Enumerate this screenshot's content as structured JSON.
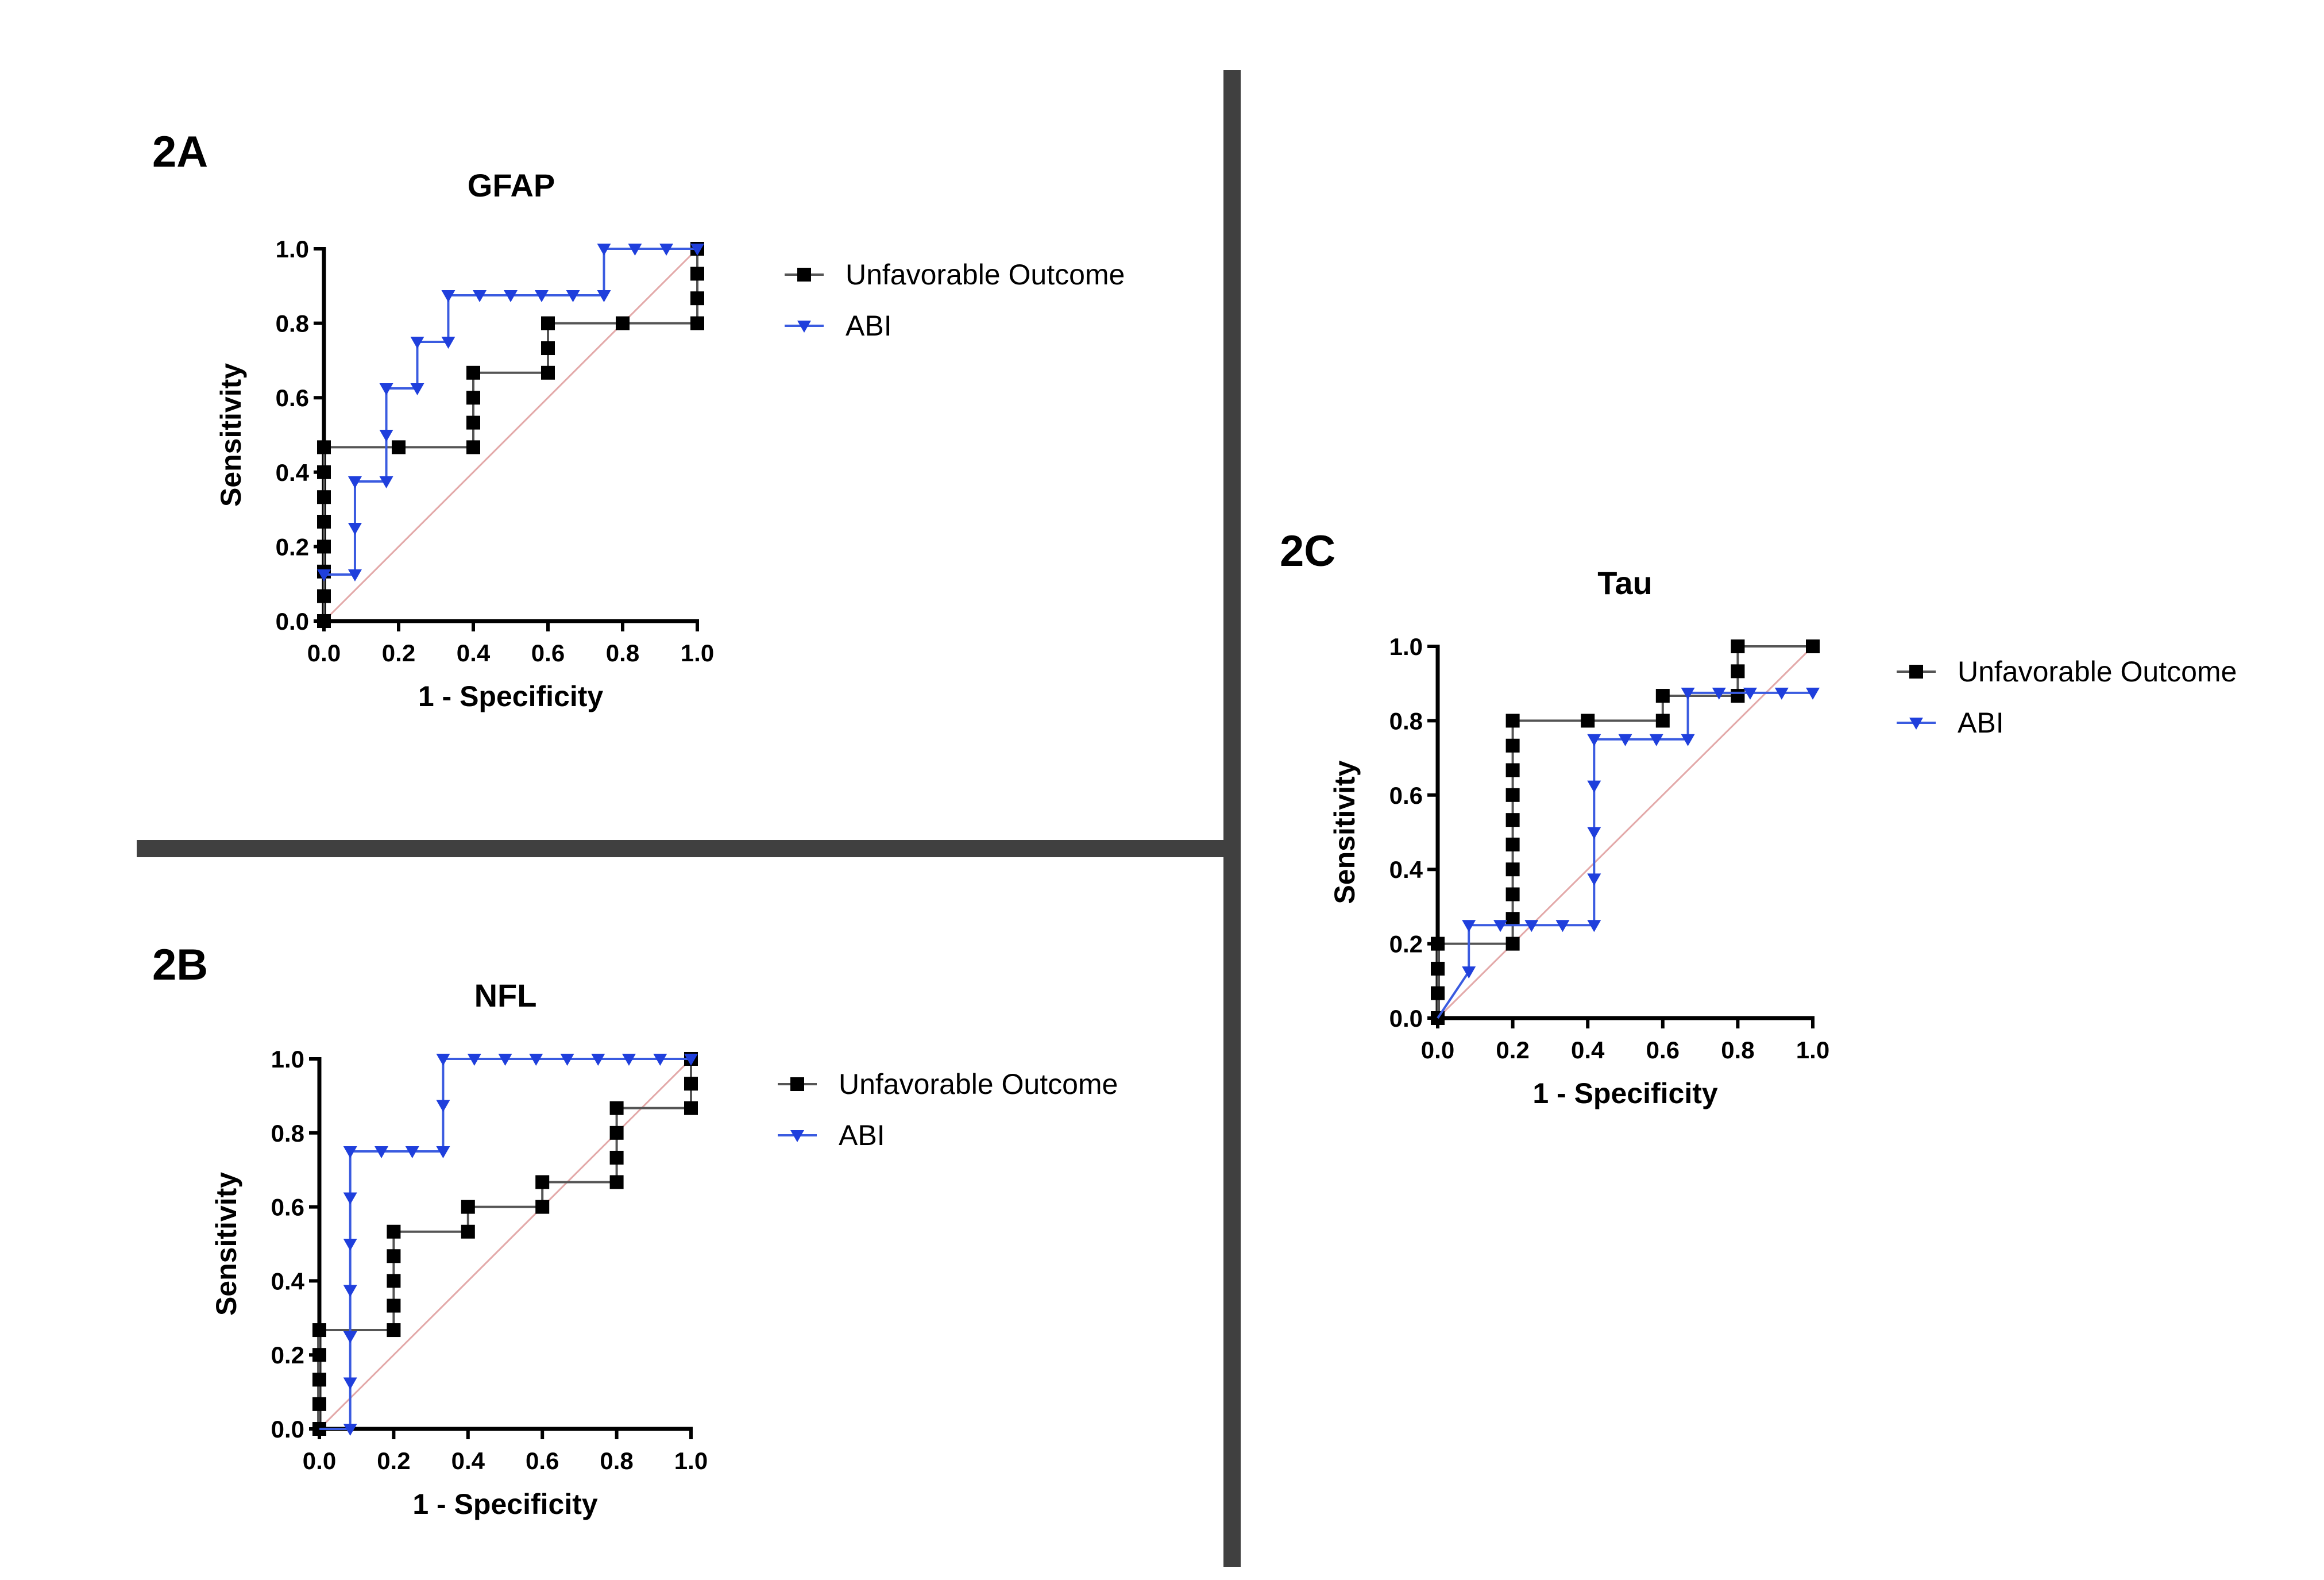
{
  "colors": {
    "unfavorable": "#000000",
    "abi": "#1f3fdc",
    "reference": "#e3a9a9",
    "divider": "#404040"
  },
  "chart_data": [
    {
      "panel": "2A",
      "type": "line",
      "title": "GFAP",
      "xlabel": "1 - Specificity",
      "ylabel": "Sensitivity",
      "xlim": [
        0,
        1
      ],
      "ylim": [
        0,
        1
      ],
      "xticks": [
        "0.0",
        "0.2",
        "0.4",
        "0.6",
        "0.8",
        "1.0"
      ],
      "yticks": [
        "0.0",
        "0.2",
        "0.4",
        "0.6",
        "0.8",
        "1.0"
      ],
      "legend": "right",
      "series": [
        {
          "name": "Unfavorable Outcome",
          "marker": "square",
          "x": [
            0,
            0,
            0,
            0,
            0,
            0,
            0,
            0,
            0.2,
            0.4,
            0.4,
            0.4,
            0.4,
            0.6,
            0.6,
            0.6,
            0.8,
            1,
            1,
            1,
            1
          ],
          "y": [
            0,
            0.067,
            0.133,
            0.2,
            0.267,
            0.333,
            0.4,
            0.467,
            0.467,
            0.467,
            0.533,
            0.6,
            0.667,
            0.667,
            0.733,
            0.8,
            0.8,
            0.8,
            0.867,
            0.933,
            1
          ]
        },
        {
          "name": "ABI",
          "marker": "triangle-down",
          "x": [
            0,
            0.083,
            0.083,
            0.083,
            0.167,
            0.167,
            0.167,
            0.25,
            0.25,
            0.333,
            0.333,
            0.417,
            0.5,
            0.583,
            0.667,
            0.75,
            0.75,
            0.833,
            0.917,
            1
          ],
          "y": [
            0.125,
            0.125,
            0.25,
            0.375,
            0.375,
            0.5,
            0.625,
            0.625,
            0.75,
            0.75,
            0.875,
            0.875,
            0.875,
            0.875,
            0.875,
            0.875,
            1,
            1,
            1,
            1
          ]
        }
      ]
    },
    {
      "panel": "2B",
      "type": "line",
      "title": "NFL",
      "xlabel": "1 - Specificity",
      "ylabel": "Sensitivity",
      "xlim": [
        0,
        1
      ],
      "ylim": [
        0,
        1
      ],
      "xticks": [
        "0.0",
        "0.2",
        "0.4",
        "0.6",
        "0.8",
        "1.0"
      ],
      "yticks": [
        "0.0",
        "0.2",
        "0.4",
        "0.6",
        "0.8",
        "1.0"
      ],
      "legend": "right",
      "series": [
        {
          "name": "Unfavorable Outcome",
          "marker": "square",
          "x": [
            0,
            0,
            0,
            0,
            0,
            0.2,
            0.2,
            0.2,
            0.2,
            0.2,
            0.4,
            0.4,
            0.6,
            0.6,
            0.8,
            0.8,
            0.8,
            0.8,
            1,
            1,
            1
          ],
          "y": [
            0,
            0.067,
            0.133,
            0.2,
            0.267,
            0.267,
            0.333,
            0.4,
            0.467,
            0.533,
            0.533,
            0.6,
            0.6,
            0.667,
            0.667,
            0.733,
            0.8,
            0.867,
            0.867,
            0.933,
            1
          ]
        },
        {
          "name": "ABI",
          "marker": "triangle-down",
          "x": [
            0.083,
            0.083,
            0.083,
            0.083,
            0.083,
            0.083,
            0.083,
            0.167,
            0.25,
            0.333,
            0.333,
            0.333,
            0.417,
            0.5,
            0.583,
            0.667,
            0.75,
            0.833,
            0.917,
            1
          ],
          "y": [
            0,
            0.125,
            0.25,
            0.375,
            0.5,
            0.625,
            0.75,
            0.75,
            0.75,
            0.75,
            0.875,
            1,
            1,
            1,
            1,
            1,
            1,
            1,
            1,
            1
          ]
        }
      ]
    },
    {
      "panel": "2C",
      "type": "line",
      "title": "Tau",
      "xlabel": "1 - Specificity",
      "ylabel": "Sensitivity",
      "xlim": [
        0,
        1
      ],
      "ylim": [
        0,
        1
      ],
      "xticks": [
        "0.0",
        "0.2",
        "0.4",
        "0.6",
        "0.8",
        "1.0"
      ],
      "yticks": [
        "0.0",
        "0.2",
        "0.4",
        "0.6",
        "0.8",
        "1.0"
      ],
      "legend": "right",
      "series": [
        {
          "name": "Unfavorable Outcome",
          "marker": "square",
          "x": [
            0,
            0,
            0,
            0,
            0.2,
            0.2,
            0.2,
            0.2,
            0.2,
            0.2,
            0.2,
            0.2,
            0.2,
            0.2,
            0.4,
            0.6,
            0.6,
            0.8,
            0.8,
            0.8,
            1
          ],
          "y": [
            0,
            0.067,
            0.133,
            0.2,
            0.2,
            0.267,
            0.333,
            0.4,
            0.467,
            0.533,
            0.6,
            0.667,
            0.733,
            0.8,
            0.8,
            0.8,
            0.867,
            0.867,
            0.933,
            1,
            1
          ]
        },
        {
          "name": "ABI",
          "marker": "triangle-down",
          "x": [
            0.083,
            0.083,
            0.167,
            0.25,
            0.333,
            0.417,
            0.417,
            0.417,
            0.417,
            0.417,
            0.5,
            0.583,
            0.667,
            0.667,
            0.75,
            0.833,
            0.917,
            1
          ],
          "y": [
            0.125,
            0.25,
            0.25,
            0.25,
            0.25,
            0.25,
            0.375,
            0.5,
            0.625,
            0.75,
            0.75,
            0.75,
            0.75,
            0.875,
            0.875,
            0.875,
            0.875,
            0.875
          ]
        }
      ]
    }
  ]
}
